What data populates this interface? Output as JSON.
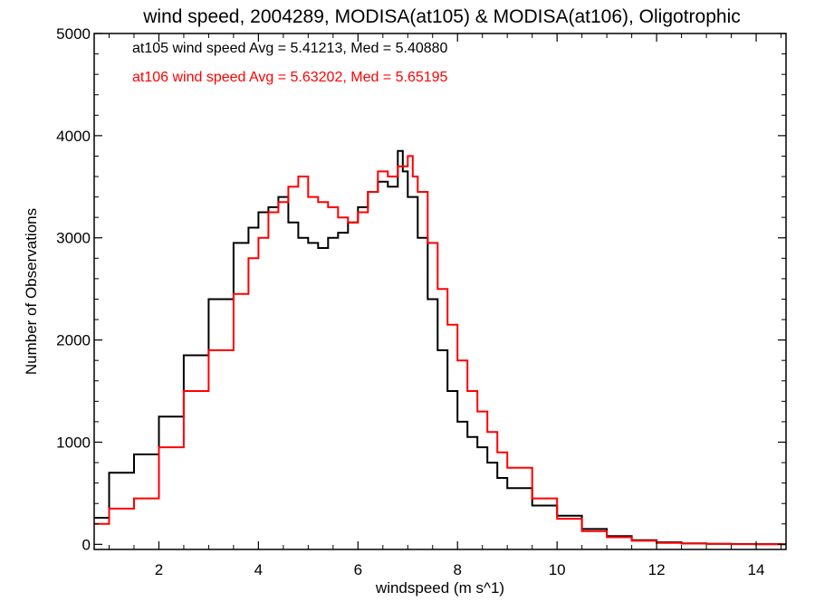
{
  "chart_data": {
    "type": "line",
    "step": true,
    "title": "wind speed, 2004289, MODISA(at105) & MODISA(at106), Oligotrophic",
    "xlabel": "windspeed (m s^1)",
    "ylabel": "Number of Observations",
    "xlim": [
      0.7,
      14.6
    ],
    "ylim": [
      -50,
      5000
    ],
    "x_ticks": [
      2,
      4,
      6,
      8,
      10,
      12,
      14
    ],
    "x_tick_labels": [
      "2",
      "4",
      "6",
      "8",
      "10",
      "12",
      "14"
    ],
    "y_ticks": [
      0,
      1000,
      2000,
      3000,
      4000,
      5000
    ],
    "y_tick_labels": [
      "0",
      "1000",
      "2000",
      "3000",
      "4000",
      "5000"
    ],
    "grid": false,
    "legend_position": "top-left",
    "series": [
      {
        "name": "at105",
        "color": "#000000",
        "annotation": "at105 wind speed Avg = 5.41213, Med = 5.40880",
        "x": [
          0.7,
          1.0,
          1.5,
          2.0,
          2.5,
          3.0,
          3.5,
          3.8,
          4.0,
          4.2,
          4.4,
          4.6,
          4.8,
          5.0,
          5.2,
          5.4,
          5.6,
          5.8,
          6.0,
          6.2,
          6.4,
          6.6,
          6.8,
          6.9,
          7.0,
          7.2,
          7.4,
          7.6,
          7.8,
          8.0,
          8.2,
          8.4,
          8.6,
          8.8,
          9.0,
          9.5,
          10.0,
          10.5,
          11.0,
          11.5,
          12.0,
          12.5,
          13.0,
          13.5,
          14.0,
          14.5
        ],
        "y": [
          260,
          700,
          880,
          1250,
          1850,
          2400,
          2950,
          3100,
          3250,
          3300,
          3400,
          3150,
          3000,
          2950,
          2900,
          3000,
          3050,
          3150,
          3300,
          3450,
          3550,
          3500,
          3850,
          3650,
          3400,
          3000,
          2400,
          1900,
          1500,
          1200,
          1050,
          950,
          800,
          650,
          550,
          380,
          280,
          150,
          80,
          40,
          20,
          10,
          5,
          3,
          2,
          1
        ]
      },
      {
        "name": "at106",
        "color": "#ff0000",
        "annotation": "at106 wind speed Avg = 5.63202, Med = 5.65195",
        "x": [
          0.7,
          1.0,
          1.5,
          2.0,
          2.5,
          3.0,
          3.5,
          3.8,
          4.0,
          4.2,
          4.4,
          4.6,
          4.8,
          5.0,
          5.2,
          5.4,
          5.6,
          5.8,
          6.0,
          6.2,
          6.4,
          6.6,
          6.8,
          7.0,
          7.1,
          7.2,
          7.4,
          7.6,
          7.8,
          8.0,
          8.2,
          8.4,
          8.6,
          8.8,
          9.0,
          9.5,
          10.0,
          10.5,
          11.0,
          11.5,
          12.0,
          12.5,
          13.0,
          13.5,
          14.0,
          14.5
        ],
        "y": [
          200,
          350,
          450,
          950,
          1500,
          1900,
          2450,
          2800,
          3000,
          3250,
          3350,
          3500,
          3600,
          3400,
          3350,
          3300,
          3200,
          3150,
          3250,
          3450,
          3650,
          3600,
          3700,
          3800,
          3600,
          3450,
          2950,
          2500,
          2150,
          1800,
          1500,
          1300,
          1100,
          900,
          750,
          450,
          250,
          130,
          70,
          35,
          15,
          8,
          4,
          2,
          1,
          1
        ]
      }
    ]
  }
}
